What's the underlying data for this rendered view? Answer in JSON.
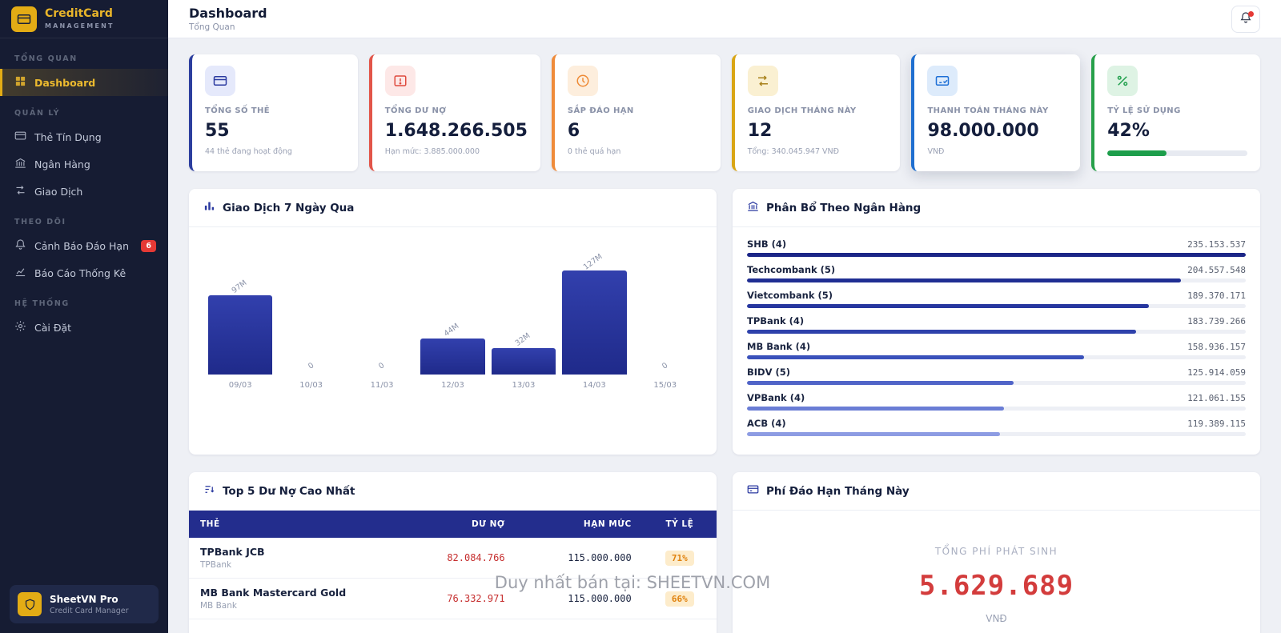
{
  "sidebar": {
    "logo_title": "CreditCard",
    "logo_subtitle": "MANAGEMENT",
    "sections": [
      {
        "title": "TỔNG QUAN",
        "items": [
          {
            "label": "Dashboard"
          }
        ]
      },
      {
        "title": "QUẢN LÝ",
        "items": [
          {
            "label": "Thẻ Tín Dụng"
          },
          {
            "label": "Ngân Hàng"
          },
          {
            "label": "Giao Dịch"
          }
        ]
      },
      {
        "title": "THEO DÕI",
        "items": [
          {
            "label": "Cảnh Báo Đáo Hạn",
            "badge": "6"
          },
          {
            "label": "Báo Cáo Thống Kê"
          }
        ]
      },
      {
        "title": "HỆ THỐNG",
        "items": [
          {
            "label": "Cài Đặt"
          }
        ]
      }
    ],
    "footer_title": "SheetVN Pro",
    "footer_subtitle": "Credit Card Manager"
  },
  "header": {
    "title": "Dashboard",
    "subtitle": "Tổng Quan"
  },
  "icons": {
    "logo": "credit-card",
    "dashboard": "grid",
    "cards": "credit-card",
    "bank": "bank-building",
    "transactions": "transfer-arrows",
    "alerts": "bell",
    "reports": "line-chart",
    "settings": "gear",
    "footer": "shield",
    "topbar_action": "bell-with-dot",
    "stat_icons": [
      "credit-card",
      "card-alert",
      "clock",
      "transfer-arrows",
      "card-payment",
      "percent"
    ]
  },
  "stats": [
    {
      "label": "TỔNG SỐ THẺ",
      "value": "55",
      "sub": "44 thẻ đang hoạt động",
      "color": "#2c3e9e",
      "tint": "#e5e9fb",
      "icon": "#2b3aa0"
    },
    {
      "label": "TỔNG DƯ NỢ",
      "value": "1.648.266.505",
      "sub": "Hạn mức: 3.885.000.000",
      "color": "#e25549",
      "tint": "#fde8e7",
      "icon": "#df4a3e"
    },
    {
      "label": "SẮP ĐÁO HẠN",
      "value": "6",
      "sub": "0 thẻ quá hạn",
      "color": "#ef8b3a",
      "tint": "#fdeedd",
      "icon": "#ee8a35"
    },
    {
      "label": "GIAO DỊCH THÁNG NÀY",
      "value": "12",
      "sub": "Tổng: 340.045.947 VNĐ",
      "color": "#d9a514",
      "tint": "#faf0d2",
      "icon": "#a8811a"
    },
    {
      "label": "THANH TOÁN THÁNG NÀY",
      "value": "98.000.000",
      "sub": "VNĐ",
      "color": "#1f6fd0",
      "tint": "#ddebfb",
      "icon": "#1d6fd6"
    },
    {
      "label": "TỶ LỆ SỬ DỤNG",
      "value": "42%",
      "progress": 42,
      "color": "#27a04a",
      "tint": "#def3e4",
      "icon": "#21a04d"
    }
  ],
  "charts": {
    "transactions": {
      "title": "Giao Dịch 7 Ngày Qua",
      "type": "bar",
      "categories": [
        "09/03",
        "10/03",
        "11/03",
        "12/03",
        "13/03",
        "14/03",
        "15/03"
      ],
      "values": [
        97,
        0,
        0,
        44,
        32,
        127,
        0
      ],
      "value_labels": [
        "97M",
        "0",
        "0",
        "44M",
        "32M",
        "127M",
        "0"
      ],
      "bar_color_top": "#3240ad",
      "bar_color_bottom": "#1f2a8a",
      "ylim": [
        0,
        127
      ]
    },
    "bank_distribution": {
      "title": "Phân Bổ Theo Ngân Hàng",
      "type": "hbar",
      "items": [
        {
          "name": "SHB (4)",
          "value": "235.153.537",
          "pct": 100,
          "color": "#1b2687"
        },
        {
          "name": "Techcombank (5)",
          "value": "204.557.548",
          "pct": 87,
          "color": "#202e93"
        },
        {
          "name": "Vietcombank (5)",
          "value": "189.370.171",
          "pct": 80.5,
          "color": "#27379f"
        },
        {
          "name": "TPBank (4)",
          "value": "183.739.266",
          "pct": 78,
          "color": "#2e41ab"
        },
        {
          "name": "MB Bank (4)",
          "value": "158.936.157",
          "pct": 67.6,
          "color": "#3a51bb"
        },
        {
          "name": "BIDV (5)",
          "value": "125.914.059",
          "pct": 53.5,
          "color": "#5064c8"
        },
        {
          "name": "VPBank (4)",
          "value": "121.061.155",
          "pct": 51.5,
          "color": "#6a7dd5"
        },
        {
          "name": "ACB (4)",
          "value": "119.389.115",
          "pct": 50.8,
          "color": "#8d9ce3"
        }
      ]
    }
  },
  "top_debt": {
    "title": "Top 5 Dư Nợ Cao Nhất",
    "columns": [
      "THẺ",
      "DƯ NỢ",
      "HẠN MỨC",
      "TỶ LỆ"
    ],
    "rows": [
      {
        "name": "TPBank JCB",
        "bank": "TPBank",
        "debt": "82.084.766",
        "limit": "115.000.000",
        "ratio": "71%"
      },
      {
        "name": "MB Bank Mastercard Gold",
        "bank": "MB Bank",
        "debt": "76.332.971",
        "limit": "115.000.000",
        "ratio": "66%"
      }
    ]
  },
  "fees": {
    "title": "Phí Đáo Hạn Tháng Này",
    "label": "TỔNG PHÍ PHÁT SINH",
    "value": "5.629.689",
    "currency": "VNĐ"
  },
  "watermark": "Duy nhất bán tại: SHEETVN.COM"
}
